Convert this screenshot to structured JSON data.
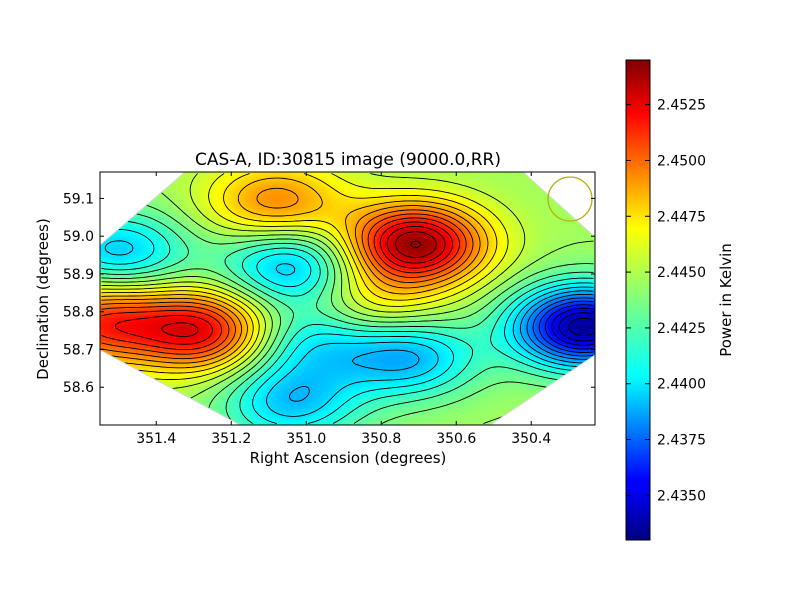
{
  "chart_data": {
    "type": "heatmap",
    "title": "CAS-A, ID:30815 image (9000.0,RR)",
    "xlabel": "Right Ascension (degrees)",
    "ylabel": "Declination (degrees)",
    "xlim": [
      351.55,
      350.23
    ],
    "ylim": [
      58.5,
      59.17
    ],
    "x_ticks": [
      351.4,
      351.2,
      351.0,
      350.8,
      350.6,
      350.4
    ],
    "x_tick_labels": [
      "351.4",
      "351.2",
      "351.0",
      "350.8",
      "350.6",
      "350.4"
    ],
    "y_ticks": [
      58.6,
      58.7,
      58.8,
      58.9,
      59.0,
      59.1
    ],
    "y_tick_labels": [
      "58.6",
      "58.7",
      "58.8",
      "58.9",
      "59.0",
      "59.1"
    ],
    "colorbar": {
      "label": "Power in Kelvin",
      "min": 2.433,
      "max": 2.4545,
      "ticks": [
        2.435,
        2.4375,
        2.44,
        2.4425,
        2.445,
        2.4475,
        2.45,
        2.4525
      ],
      "tick_labels": [
        "2.4350",
        "2.4375",
        "2.4400",
        "2.4425",
        "2.4450",
        "2.4475",
        "2.4500",
        "2.4525"
      ],
      "colormap": "jet"
    },
    "features": [
      {
        "kind": "peak",
        "x": 350.71,
        "y": 58.98,
        "value": 2.454
      },
      {
        "kind": "peak",
        "x": 351.28,
        "y": 58.75,
        "value": 2.452
      },
      {
        "kind": "peak",
        "x": 351.55,
        "y": 58.77,
        "value": 2.4505
      },
      {
        "kind": "peak",
        "x": 351.08,
        "y": 59.09,
        "value": 2.449
      },
      {
        "kind": "peak",
        "x": 350.82,
        "y": 58.82,
        "value": 2.447
      },
      {
        "kind": "trough",
        "x": 350.26,
        "y": 58.76,
        "value": 2.4335
      },
      {
        "kind": "trough",
        "x": 351.5,
        "y": 58.96,
        "value": 2.44
      },
      {
        "kind": "trough",
        "x": 351.04,
        "y": 58.92,
        "value": 2.4395
      },
      {
        "kind": "trough",
        "x": 350.73,
        "y": 58.68,
        "value": 2.4395
      },
      {
        "kind": "trough",
        "x": 351.04,
        "y": 58.56,
        "value": 2.44
      },
      {
        "kind": "trough",
        "x": 350.99,
        "y": 58.72,
        "value": 2.441
      }
    ],
    "beam_marker": {
      "shape": "circle",
      "color": "#b5b30e"
    },
    "grid": false
  }
}
